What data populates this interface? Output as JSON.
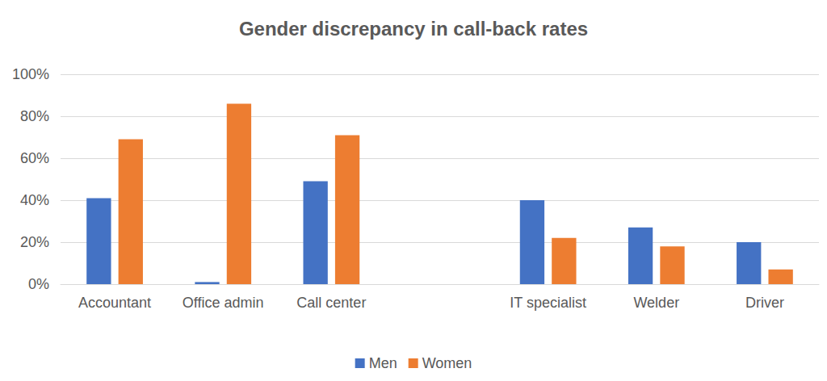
{
  "chart_data": {
    "type": "bar",
    "title": "Gender discrepancy in call-back rates",
    "categories": [
      "Accountant",
      "Office admin",
      "Call center",
      null,
      "IT specialist",
      "Welder",
      "Driver"
    ],
    "series": [
      {
        "name": "Men",
        "color": "#4472c4",
        "values": [
          41,
          1,
          49,
          null,
          40,
          27,
          20
        ]
      },
      {
        "name": "Women",
        "color": "#ed7d31",
        "values": [
          69,
          86,
          71,
          null,
          22,
          18,
          7
        ]
      }
    ],
    "ylim": [
      0,
      100
    ],
    "yticks": [
      {
        "value": 0,
        "label": "0%"
      },
      {
        "value": 20,
        "label": "20%"
      },
      {
        "value": 40,
        "label": "40%"
      },
      {
        "value": 60,
        "label": "60%"
      },
      {
        "value": 80,
        "label": "80%"
      },
      {
        "value": 100,
        "label": "100%"
      }
    ],
    "grid": true,
    "legend": "bottom"
  }
}
